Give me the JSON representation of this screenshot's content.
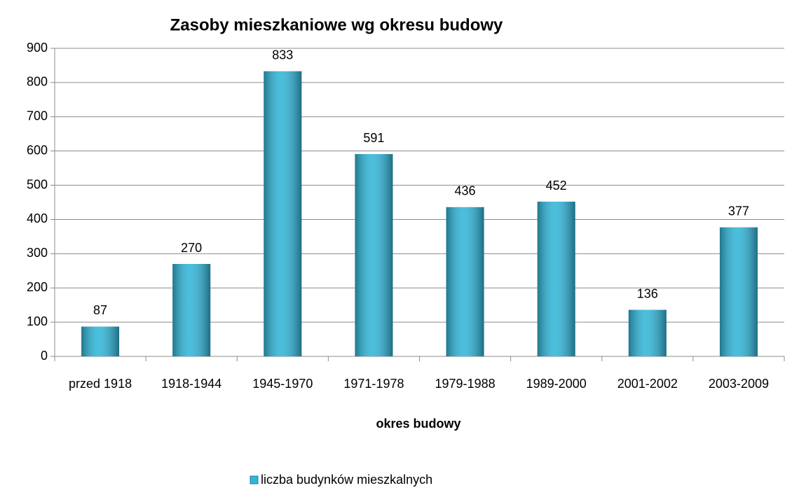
{
  "chart_data": {
    "type": "bar",
    "title": "Zasoby mieszkaniowe wg okresu budowy",
    "x_label": "okres budowy",
    "categories": [
      "przed 1918",
      "1918-1944",
      "1945-1970",
      "1971-1978",
      "1979-1988",
      "1989-2000",
      "2001-2002",
      "2003-2009"
    ],
    "series": [
      {
        "name": "liczba budynków mieszkalnych",
        "color": "#31b6d9",
        "values": [
          87,
          270,
          833,
          591,
          436,
          452,
          136,
          377
        ]
      }
    ],
    "ylim": [
      0,
      900
    ],
    "yticks": [
      0,
      100,
      200,
      300,
      400,
      500,
      600,
      700,
      800,
      900
    ],
    "grid": true,
    "legend": "bottom"
  }
}
